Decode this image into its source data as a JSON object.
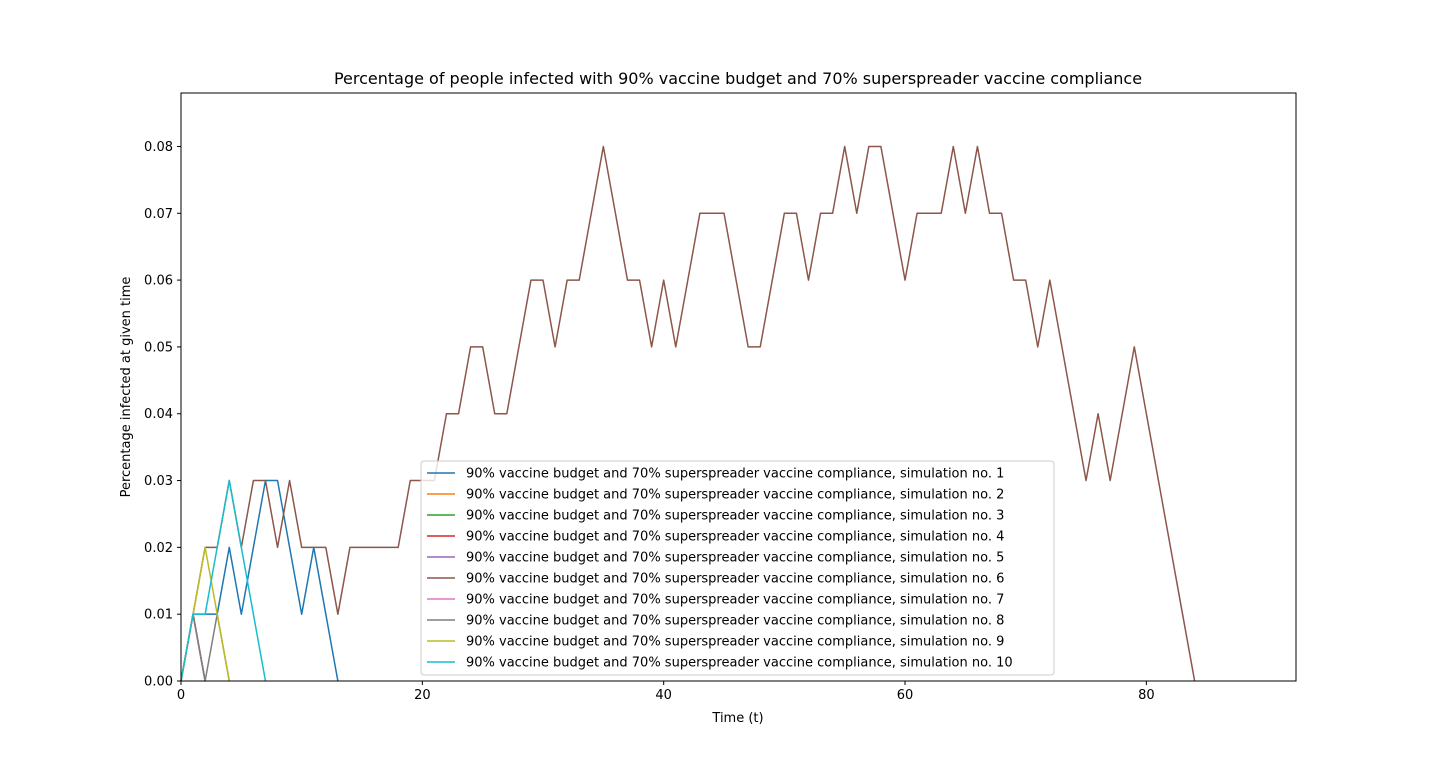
{
  "chart_data": {
    "type": "line",
    "title": "Percentage of people infected with 90% vaccine budget and 70% superspreader vaccine compliance",
    "xlabel": "Time (t)",
    "ylabel": "Percentage infected at given time",
    "xlim": [
      0,
      92.4
    ],
    "ylim": [
      0,
      0.088
    ],
    "xticks": [
      0,
      20,
      40,
      60,
      80
    ],
    "xtick_labels": [
      "0",
      "20",
      "40",
      "60",
      "80"
    ],
    "yticks": [
      0,
      0.01,
      0.02,
      0.03,
      0.04,
      0.05,
      0.06,
      0.07,
      0.08
    ],
    "ytick_labels": [
      "0.00",
      "0.01",
      "0.02",
      "0.03",
      "0.04",
      "0.05",
      "0.06",
      "0.07",
      "0.08"
    ],
    "grid": false,
    "legend_position": "lower-center",
    "series": [
      {
        "name": "90% vaccine budget and 70% superspreader vaccine compliance, simulation no. 1",
        "color": "#1f77b4",
        "x": [
          0,
          1,
          2,
          3,
          4,
          5,
          6,
          7,
          8,
          9,
          10,
          11,
          12,
          13
        ],
        "y": [
          0,
          0.01,
          0.01,
          0.01,
          0.02,
          0.01,
          0.02,
          0.03,
          0.03,
          0.02,
          0.01,
          0.02,
          0.01,
          0
        ]
      },
      {
        "name": "90% vaccine budget and 70% superspreader vaccine compliance, simulation no. 2",
        "color": "#ff7f0e",
        "x": [
          0,
          1,
          2
        ],
        "y": [
          0,
          0.01,
          0
        ]
      },
      {
        "name": "90% vaccine budget and 70% superspreader vaccine compliance, simulation no. 3",
        "color": "#2ca02c",
        "x": [
          0,
          1,
          2
        ],
        "y": [
          0,
          0.01,
          0
        ]
      },
      {
        "name": "90% vaccine budget and 70% superspreader vaccine compliance, simulation no. 4",
        "color": "#d62728",
        "x": [
          0,
          1,
          2
        ],
        "y": [
          0,
          0.01,
          0
        ]
      },
      {
        "name": "90% vaccine budget and 70% superspreader vaccine compliance, simulation no. 5",
        "color": "#9467bd",
        "x": [
          0,
          1,
          2
        ],
        "y": [
          0,
          0.01,
          0
        ]
      },
      {
        "name": "90% vaccine budget and 70% superspreader vaccine compliance, simulation no. 6",
        "color": "#8c564b",
        "x": [
          0,
          1,
          2,
          3,
          4,
          5,
          6,
          7,
          8,
          9,
          10,
          11,
          12,
          13,
          14,
          15,
          16,
          17,
          18,
          19,
          20,
          21,
          22,
          23,
          24,
          25,
          26,
          27,
          28,
          29,
          30,
          31,
          32,
          33,
          34,
          35,
          36,
          37,
          38,
          39,
          40,
          41,
          42,
          43,
          44,
          45,
          46,
          47,
          48,
          49,
          50,
          51,
          52,
          53,
          54,
          55,
          56,
          57,
          58,
          59,
          60,
          61,
          62,
          63,
          64,
          65,
          66,
          67,
          68,
          69,
          70,
          71,
          72,
          73,
          74,
          75,
          76,
          77,
          78,
          79,
          80,
          81,
          82,
          83,
          84
        ],
        "y": [
          0,
          0.01,
          0.02,
          0.02,
          0.03,
          0.02,
          0.03,
          0.03,
          0.02,
          0.03,
          0.02,
          0.02,
          0.02,
          0.01,
          0.02,
          0.02,
          0.02,
          0.02,
          0.02,
          0.03,
          0.03,
          0.03,
          0.04,
          0.04,
          0.05,
          0.05,
          0.04,
          0.04,
          0.05,
          0.06,
          0.06,
          0.05,
          0.06,
          0.06,
          0.07,
          0.08,
          0.07,
          0.06,
          0.06,
          0.05,
          0.06,
          0.05,
          0.06,
          0.07,
          0.07,
          0.07,
          0.06,
          0.05,
          0.05,
          0.06,
          0.07,
          0.07,
          0.06,
          0.07,
          0.07,
          0.08,
          0.07,
          0.08,
          0.08,
          0.07,
          0.06,
          0.07,
          0.07,
          0.07,
          0.08,
          0.07,
          0.08,
          0.07,
          0.07,
          0.06,
          0.06,
          0.05,
          0.06,
          0.05,
          0.04,
          0.03,
          0.04,
          0.03,
          0.04,
          0.05,
          0.04,
          0.03,
          0.02,
          0.01,
          0
        ]
      },
      {
        "name": "90% vaccine budget and 70% superspreader vaccine compliance, simulation no. 7",
        "color": "#e377c2",
        "x": [
          0,
          1,
          2
        ],
        "y": [
          0,
          0.01,
          0
        ]
      },
      {
        "name": "90% vaccine budget and 70% superspreader vaccine compliance, simulation no. 8",
        "color": "#7f7f7f",
        "x": [
          0,
          1,
          2,
          3,
          4
        ],
        "y": [
          0,
          0.01,
          0,
          0.01,
          0
        ]
      },
      {
        "name": "90% vaccine budget and 70% superspreader vaccine compliance, simulation no. 9",
        "color": "#bcbd22",
        "x": [
          0,
          1,
          2,
          3,
          4
        ],
        "y": [
          0,
          0.01,
          0.02,
          0.01,
          0
        ]
      },
      {
        "name": "90% vaccine budget and 70% superspreader vaccine compliance, simulation no. 10",
        "color": "#17becf",
        "x": [
          0,
          1,
          2,
          3,
          4,
          5,
          6,
          7
        ],
        "y": [
          0,
          0.01,
          0.01,
          0.02,
          0.03,
          0.02,
          0.01,
          0
        ]
      }
    ]
  }
}
